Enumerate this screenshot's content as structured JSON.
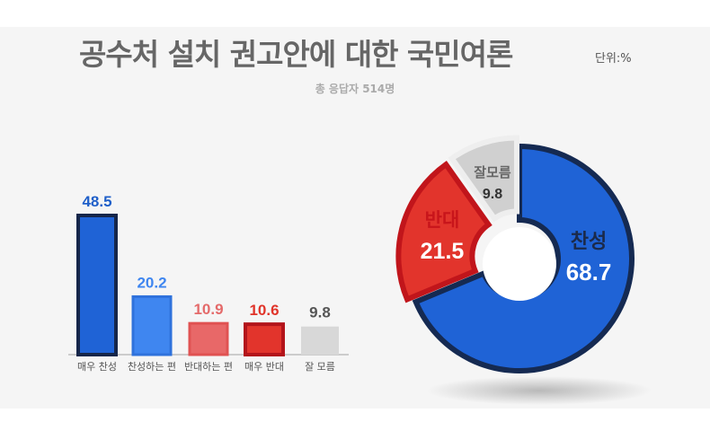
{
  "header": {
    "title": "공수처 설치 권고안에 대한 국민여론",
    "unit": "단위:%",
    "subtitle": "총 응답자 514명"
  },
  "chart_data": [
    {
      "type": "bar",
      "categories": [
        "매우 찬성",
        "찬성하는 편",
        "반대하는 편",
        "매우 반대",
        "잘 모름"
      ],
      "values": [
        48.5,
        20.2,
        10.9,
        10.6,
        9.8
      ],
      "value_labels": [
        "48.5",
        "20.2",
        "10.9",
        "10.6",
        "9.8"
      ],
      "colors": [
        "#1f63d6",
        "#3f86f0",
        "#e86868",
        "#e2342c",
        "#d8d8d8"
      ],
      "label_colors": [
        "#1f5fc9",
        "#3f86f0",
        "#e46a6a",
        "#e0342a",
        "#555555"
      ],
      "title": "",
      "xlabel": "",
      "ylabel": ""
    },
    {
      "type": "pie",
      "donut": true,
      "categories": [
        "찬성",
        "반대",
        "잘 모름"
      ],
      "values": [
        68.7,
        21.5,
        9.8
      ],
      "slice_labels": [
        "찬성",
        "반대",
        "잘모름"
      ],
      "value_labels": [
        "68.7",
        "21.5",
        "9.8"
      ],
      "colors": [
        "#1f63d6",
        "#e2342c",
        "#d0d0d0"
      ],
      "label_colors": [
        "#1b2a4a",
        "#c8151b",
        "#666666"
      ],
      "value_label_colors": [
        "#ffffff",
        "#ffffff",
        "#333333"
      ]
    }
  ]
}
